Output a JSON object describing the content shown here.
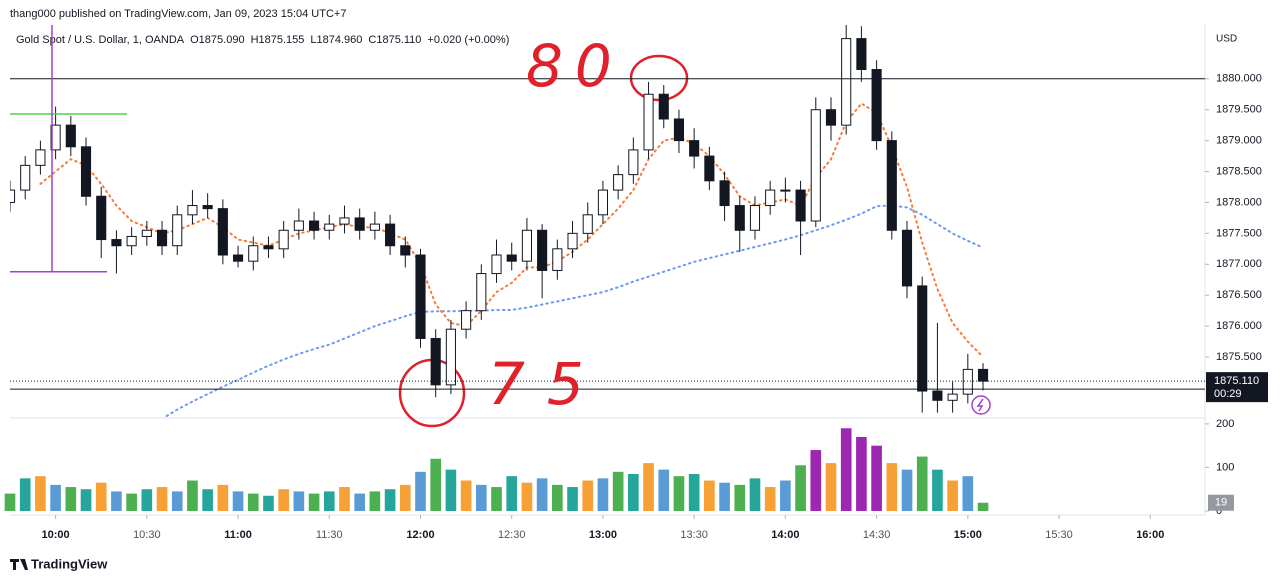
{
  "header": {
    "publisher": "thang000 published on TradingView.com, Jan 09, 2023 15:04 UTC+7",
    "brand": "TradingView"
  },
  "chart_data": {
    "type": "candlestick",
    "symbol": "Gold Spot / U.S. Dollar, 1, OANDA",
    "ohlc_labels": [
      "O1875.090",
      "H1875.155",
      "L1874.960",
      "C1875.110",
      "+0.020 (+0.00%)"
    ],
    "currency": "USD",
    "x": [
      "09:45",
      "09:50",
      "09:55",
      "10:00",
      "10:05",
      "10:10",
      "10:15",
      "10:20",
      "10:25",
      "10:30",
      "10:35",
      "10:40",
      "10:45",
      "10:50",
      "10:55",
      "11:00",
      "11:05",
      "11:10",
      "11:15",
      "11:20",
      "11:25",
      "11:30",
      "11:35",
      "11:40",
      "11:45",
      "11:50",
      "11:55",
      "12:00",
      "12:05",
      "12:10",
      "12:15",
      "12:20",
      "12:25",
      "12:30",
      "12:35",
      "12:40",
      "12:45",
      "12:50",
      "12:55",
      "13:00",
      "13:05",
      "13:10",
      "13:15",
      "13:20",
      "13:25",
      "13:30",
      "13:35",
      "13:40",
      "13:45",
      "13:50",
      "13:55",
      "14:00",
      "14:05",
      "14:10",
      "14:15",
      "14:20",
      "14:25",
      "14:30",
      "14:35",
      "14:40",
      "14:45",
      "14:50",
      "14:55",
      "15:00",
      "15:05"
    ],
    "open": [
      1878.0,
      1878.2,
      1878.6,
      1878.85,
      1879.25,
      1878.9,
      1878.1,
      1877.4,
      1877.3,
      1877.45,
      1877.55,
      1877.3,
      1877.8,
      1877.95,
      1877.9,
      1877.15,
      1877.05,
      1877.3,
      1877.25,
      1877.55,
      1877.7,
      1877.55,
      1877.65,
      1877.75,
      1877.55,
      1877.65,
      1877.3,
      1877.15,
      1875.8,
      1875.05,
      1875.95,
      1876.25,
      1876.85,
      1877.15,
      1877.05,
      1877.55,
      1876.9,
      1877.25,
      1877.5,
      1877.8,
      1878.2,
      1878.45,
      1878.85,
      1879.75,
      1879.35,
      1879.0,
      1878.75,
      1878.35,
      1877.95,
      1877.55,
      1877.95,
      1878.2,
      1878.2,
      1877.7,
      1879.5,
      1879.25,
      1880.65,
      1880.15,
      1879.0,
      1877.55,
      1876.65,
      1874.95,
      1874.8,
      1874.9,
      1875.3
    ],
    "high": [
      1878.35,
      1878.75,
      1879.0,
      1879.55,
      1879.4,
      1879.05,
      1878.25,
      1877.55,
      1877.6,
      1877.7,
      1877.7,
      1877.95,
      1878.2,
      1878.15,
      1878.05,
      1877.3,
      1877.45,
      1877.45,
      1877.7,
      1877.9,
      1877.85,
      1877.8,
      1877.95,
      1877.9,
      1877.85,
      1877.8,
      1877.45,
      1877.25,
      1875.95,
      1876.1,
      1876.4,
      1877.0,
      1877.4,
      1877.35,
      1877.75,
      1877.65,
      1877.4,
      1877.7,
      1878.0,
      1878.35,
      1878.6,
      1879.05,
      1879.95,
      1879.9,
      1879.5,
      1879.2,
      1878.9,
      1878.5,
      1878.1,
      1878.1,
      1878.35,
      1878.4,
      1878.35,
      1879.7,
      1879.7,
      1880.9,
      1880.85,
      1880.3,
      1879.15,
      1877.7,
      1876.8,
      1876.05,
      1875.1,
      1875.55,
      1875.4
    ],
    "low": [
      1877.85,
      1878.05,
      1878.45,
      1878.7,
      1878.75,
      1877.95,
      1877.1,
      1876.85,
      1877.15,
      1877.3,
      1877.15,
      1877.15,
      1877.65,
      1877.75,
      1877.0,
      1876.95,
      1876.9,
      1877.1,
      1877.1,
      1877.4,
      1877.4,
      1877.4,
      1877.5,
      1877.4,
      1877.4,
      1877.15,
      1876.95,
      1875.65,
      1874.85,
      1874.9,
      1875.8,
      1876.1,
      1876.7,
      1876.9,
      1876.9,
      1876.45,
      1876.75,
      1877.1,
      1877.35,
      1877.65,
      1878.05,
      1878.3,
      1878.7,
      1879.2,
      1878.8,
      1878.55,
      1878.2,
      1877.7,
      1877.2,
      1877.4,
      1877.8,
      1878.0,
      1877.15,
      1877.6,
      1879.0,
      1879.1,
      1879.95,
      1878.85,
      1877.4,
      1876.45,
      1874.6,
      1874.6,
      1874.6,
      1874.75,
      1874.96
    ],
    "close": [
      1878.2,
      1878.6,
      1878.85,
      1879.25,
      1878.9,
      1878.1,
      1877.4,
      1877.3,
      1877.45,
      1877.55,
      1877.3,
      1877.8,
      1877.95,
      1877.9,
      1877.15,
      1877.05,
      1877.3,
      1877.25,
      1877.55,
      1877.7,
      1877.55,
      1877.65,
      1877.75,
      1877.55,
      1877.65,
      1877.3,
      1877.15,
      1875.8,
      1875.05,
      1875.95,
      1876.25,
      1876.85,
      1877.15,
      1877.05,
      1877.55,
      1876.9,
      1877.25,
      1877.5,
      1877.8,
      1878.2,
      1878.45,
      1878.85,
      1879.75,
      1879.35,
      1879.0,
      1878.75,
      1878.35,
      1877.95,
      1877.55,
      1877.95,
      1878.2,
      1878.2,
      1877.7,
      1879.5,
      1879.25,
      1880.65,
      1880.15,
      1879.0,
      1877.55,
      1876.65,
      1874.95,
      1874.8,
      1874.9,
      1875.3,
      1875.11
    ],
    "ma_fast": {
      "color": "#f57c3a",
      "values": [
        null,
        null,
        1878.3,
        1878.5,
        1878.7,
        1878.6,
        1878.3,
        1877.95,
        1877.7,
        1877.6,
        1877.5,
        1877.55,
        1877.65,
        1877.75,
        1877.6,
        1877.4,
        1877.35,
        1877.3,
        1877.4,
        1877.5,
        1877.55,
        1877.6,
        1877.65,
        1877.6,
        1877.6,
        1877.5,
        1877.4,
        1877.0,
        1876.35,
        1876.05,
        1876.0,
        1876.25,
        1876.55,
        1876.7,
        1876.95,
        1876.95,
        1877.05,
        1877.2,
        1877.4,
        1877.65,
        1877.9,
        1878.2,
        1878.7,
        1879.0,
        1879.05,
        1878.95,
        1878.75,
        1878.45,
        1878.1,
        1877.95,
        1878.0,
        1878.05,
        1877.95,
        1878.4,
        1878.7,
        1879.3,
        1879.6,
        1879.45,
        1878.9,
        1878.25,
        1877.35,
        1876.6,
        1876.05,
        1875.75,
        1875.5
      ]
    },
    "ma_slow": {
      "color": "#6a9cf0",
      "values": [
        null,
        null,
        null,
        null,
        null,
        null,
        null,
        null,
        null,
        null,
        1874.5,
        1874.65,
        1874.78,
        1874.9,
        1875.02,
        1875.13,
        1875.25,
        1875.36,
        1875.46,
        1875.55,
        1875.63,
        1875.7,
        1875.8,
        1875.9,
        1876.0,
        1876.08,
        1876.16,
        1876.23,
        1876.24,
        1876.24,
        1876.25,
        1876.25,
        1876.26,
        1876.26,
        1876.3,
        1876.35,
        1876.4,
        1876.45,
        1876.5,
        1876.55,
        1876.63,
        1876.72,
        1876.8,
        1876.88,
        1876.96,
        1877.04,
        1877.1,
        1877.16,
        1877.22,
        1877.28,
        1877.34,
        1877.4,
        1877.47,
        1877.55,
        1877.63,
        1877.72,
        1877.82,
        1877.94,
        1877.95,
        1877.92,
        1877.8,
        1877.65,
        1877.5,
        1877.38,
        1877.27
      ]
    },
    "ylim": [
      1874.53,
      1880.87
    ],
    "yticks": [
      {
        "value": 1875.5,
        "label": "1875.500"
      },
      {
        "value": 1876.0,
        "label": "1876.000"
      },
      {
        "value": 1876.5,
        "label": "1876.500"
      },
      {
        "value": 1877.0,
        "label": "1877.000"
      },
      {
        "value": 1877.5,
        "label": "1877.500"
      },
      {
        "value": 1878.0,
        "label": "1878.000"
      },
      {
        "value": 1878.5,
        "label": "1878.500"
      },
      {
        "value": 1879.0,
        "label": "1879.000"
      },
      {
        "value": 1879.5,
        "label": "1879.500"
      },
      {
        "value": 1880.0,
        "label": "1880.000"
      }
    ],
    "xlim": [
      "09:45",
      "16:18"
    ],
    "xticks": [
      "10:00",
      "10:30",
      "11:00",
      "11:30",
      "12:00",
      "12:30",
      "13:00",
      "13:30",
      "14:00",
      "14:30",
      "15:00",
      "15:30",
      "16:00"
    ],
    "horizontal_lines": [
      1880.0,
      1874.98
    ],
    "drawn_lines": [
      {
        "color": "#4cd44c",
        "value": 1879.43
      },
      {
        "color": "#a040d0",
        "value": 1876.88
      }
    ],
    "last_price_label": "1875.110",
    "countdown": "00:29",
    "annotations": [
      "80",
      "75"
    ],
    "volume": {
      "values": [
        40,
        75,
        80,
        60,
        55,
        50,
        65,
        45,
        40,
        50,
        55,
        45,
        70,
        50,
        60,
        45,
        40,
        35,
        50,
        45,
        40,
        45,
        55,
        40,
        45,
        50,
        60,
        90,
        120,
        95,
        70,
        60,
        55,
        80,
        65,
        75,
        60,
        55,
        70,
        75,
        90,
        85,
        110,
        95,
        80,
        85,
        70,
        65,
        60,
        75,
        55,
        70,
        105,
        140,
        110,
        190,
        170,
        150,
        110,
        95,
        125,
        95,
        70,
        80,
        19
      ],
      "ylim": [
        0,
        209
      ],
      "yticks": [
        0,
        100,
        200
      ]
    }
  }
}
